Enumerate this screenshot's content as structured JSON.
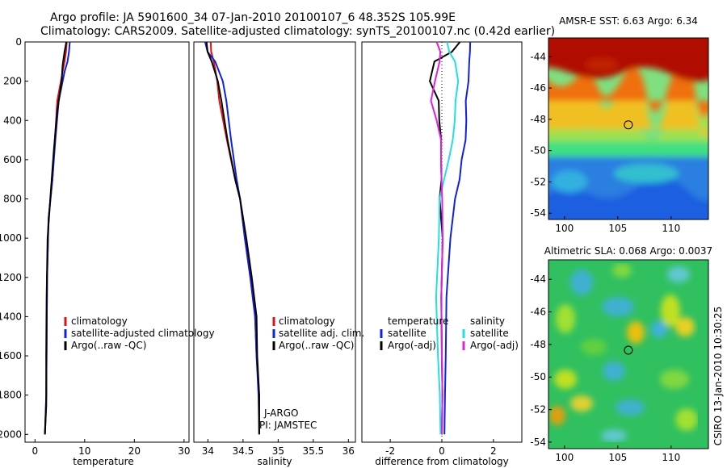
{
  "header": {
    "line1": "Argo profile: JA 5901600_34 07-Jan-2010 20100107_6 48.352S 105.99E",
    "line2": "Climatology: CARS2009. Satellite-adjusted climatology: synTS_20100107.nc (0.42d earlier)"
  },
  "side_label": "CSIRO 13-Jan-2010 10:30:25",
  "colors": {
    "climatology": "#e01010",
    "satellite": "#1020e0",
    "argo": "#000000",
    "salinity_satellite": "#20e0e0",
    "salinity_argo": "#e020e0"
  },
  "chart_data": [
    {
      "type": "line",
      "id": "temperature",
      "xlabel": "temperature",
      "ylabel": "",
      "xlim": [
        -2,
        31
      ],
      "ylim": [
        2040,
        0
      ],
      "y_reversed": true,
      "xticks": [
        0,
        10,
        20,
        30
      ],
      "yticks": [
        0,
        200,
        400,
        600,
        800,
        1000,
        1200,
        1400,
        1600,
        1800,
        2000
      ],
      "legend": {
        "placement": "lower-center",
        "entries": [
          {
            "label": "climatology",
            "color": "#e01010"
          },
          {
            "label": "satellite-adjusted climatology",
            "color": "#1020e0"
          },
          {
            "label": "Argo(..raw -QC)",
            "color": "#000000"
          }
        ]
      },
      "series": [
        {
          "name": "climatology",
          "color": "#e01010",
          "x": [
            6.4,
            6.3,
            5.9,
            5.4,
            4.6,
            4.0,
            3.4,
            2.9,
            2.5,
            2.3,
            2.1,
            2.0
          ],
          "y": [
            0,
            50,
            100,
            150,
            300,
            500,
            700,
            900,
            1200,
            1500,
            1800,
            2000
          ]
        },
        {
          "name": "satellite-adjusted climatology",
          "color": "#1020e0",
          "x": [
            7.0,
            6.9,
            6.5,
            5.8,
            4.9,
            4.1,
            3.4,
            2.9,
            2.5,
            2.3,
            2.1,
            2.0
          ],
          "y": [
            0,
            50,
            100,
            150,
            300,
            500,
            700,
            900,
            1200,
            1500,
            1800,
            2000
          ]
        },
        {
          "name": "Argo(..raw -QC)",
          "color": "#000000",
          "x": [
            6.3,
            6.0,
            5.5,
            5.2,
            4.6,
            3.8,
            3.1,
            2.7,
            2.4,
            2.2,
            2.1,
            2.0
          ],
          "y": [
            0,
            50,
            120,
            200,
            350,
            550,
            750,
            1000,
            1300,
            1600,
            1850,
            2000
          ]
        }
      ]
    },
    {
      "type": "line",
      "id": "salinity",
      "xlabel": "salinity",
      "ylabel": "",
      "xlim": [
        33.8,
        36.1
      ],
      "ylim": [
        2040,
        0
      ],
      "y_reversed": true,
      "xticks": [
        34,
        34.5,
        35,
        35.5,
        36
      ],
      "legend": {
        "placement": "lower-center",
        "entries": [
          {
            "label": "climatology",
            "color": "#e01010"
          },
          {
            "label": "satellite adj. clim.",
            "color": "#1020e0"
          },
          {
            "label": "Argo(..raw -QC)",
            "color": "#000000"
          }
        ]
      },
      "annotation": [
        "J-ARGO",
        "PI: JAMSTEC"
      ],
      "series": [
        {
          "name": "climatology",
          "color": "#e01010",
          "x": [
            34.04,
            34.05,
            34.08,
            34.12,
            34.17,
            34.27,
            34.38,
            34.47,
            34.53,
            34.6,
            34.66,
            34.7,
            34.73,
            34.73
          ],
          "y": [
            0,
            50,
            100,
            200,
            300,
            500,
            700,
            800,
            1000,
            1200,
            1400,
            1600,
            1800,
            2000
          ]
        },
        {
          "name": "satellite adj. clim.",
          "color": "#1020e0",
          "x": [
            33.96,
            34.0,
            34.1,
            34.2,
            34.27,
            34.33,
            34.4,
            34.47,
            34.53,
            34.6,
            34.66,
            34.7,
            34.72,
            34.73
          ],
          "y": [
            0,
            50,
            100,
            200,
            300,
            500,
            700,
            800,
            1000,
            1200,
            1400,
            1600,
            1800,
            2000
          ]
        },
        {
          "name": "Argo(..raw -QC)",
          "color": "#000000",
          "x": [
            33.98,
            34.0,
            34.05,
            34.13,
            34.2,
            34.28,
            34.38,
            34.47,
            34.55,
            34.62,
            34.68,
            34.71,
            34.73,
            34.73
          ],
          "y": [
            0,
            50,
            100,
            200,
            300,
            500,
            700,
            800,
            1000,
            1200,
            1400,
            1600,
            1800,
            2000
          ]
        }
      ]
    },
    {
      "type": "line",
      "id": "difference",
      "xlabel": "difference from climatology",
      "ylabel": "",
      "xlim": [
        -3.1,
        3.1
      ],
      "ylim": [
        2040,
        0
      ],
      "y_reversed": true,
      "xticks": [
        -2,
        0,
        2
      ],
      "legend": {
        "placement": "lower-center",
        "columns": [
          {
            "heading": "temperature",
            "entries": [
              {
                "label": "satellite",
                "color": "#1020e0"
              },
              {
                "label": "Argo(-adj)",
                "color": "#000000"
              }
            ]
          },
          {
            "heading": "salinity",
            "entries": [
              {
                "label": "satellite",
                "color": "#20e0e0"
              },
              {
                "label": "Argo(-adj)",
                "color": "#e020e0"
              }
            ]
          }
        ]
      },
      "series": [
        {
          "name": "temperature satellite",
          "color": "#1020e0",
          "x": [
            1.1,
            1.1,
            1.05,
            1.0,
            0.95,
            0.95,
            0.9,
            0.8,
            0.7,
            0.5,
            0.3,
            0.2,
            0.15,
            0.1,
            0.1
          ],
          "y": [
            0,
            50,
            100,
            200,
            300,
            400,
            500,
            600,
            700,
            800,
            1000,
            1300,
            1600,
            1800,
            2000
          ]
        },
        {
          "name": "temperature Argo(-adj)",
          "color": "#000000",
          "x": [
            0.7,
            0.4,
            -0.3,
            -0.5,
            -0.1,
            -0.1,
            -0.05,
            0.0,
            0.0,
            -0.1,
            0.0,
            0.0,
            0.0,
            0.0,
            0.0
          ],
          "y": [
            0,
            50,
            100,
            200,
            300,
            400,
            500,
            600,
            700,
            800,
            1000,
            1300,
            1600,
            1800,
            2000
          ]
        },
        {
          "name": "salinity satellite",
          "color": "#20e0e0",
          "x": [
            0.2,
            0.3,
            0.5,
            0.6,
            0.55,
            0.5,
            0.4,
            0.3,
            0.1,
            -0.1,
            -0.15,
            -0.2,
            -0.15,
            -0.1,
            -0.05
          ],
          "y": [
            0,
            50,
            100,
            200,
            300,
            400,
            500,
            600,
            700,
            800,
            1000,
            1300,
            1600,
            1800,
            2000
          ]
        },
        {
          "name": "salinity Argo(-adj)",
          "color": "#e020e0",
          "x": [
            -0.2,
            -0.05,
            -0.1,
            -0.3,
            -0.4,
            -0.2,
            -0.05,
            0.0,
            0.0,
            0.0,
            0.0,
            0.0,
            0.0,
            0.0,
            0.0
          ],
          "y": [
            0,
            50,
            100,
            200,
            300,
            400,
            500,
            600,
            700,
            800,
            1000,
            1300,
            1600,
            1800,
            2000
          ]
        }
      ]
    },
    {
      "type": "heatmap",
      "id": "sst-map",
      "title": "AMSR-E SST: 6.63 Argo: 6.34",
      "xlim": [
        98.5,
        113.5
      ],
      "ylim": [
        -54.4,
        -42.8
      ],
      "xticks": [
        100,
        105,
        110
      ],
      "yticks": [
        -44,
        -46,
        -48,
        -50,
        -52,
        -54
      ],
      "marker": {
        "lon": 105.99,
        "lat": -48.352
      }
    },
    {
      "type": "heatmap",
      "id": "sla-map",
      "title": "Altimetric SLA: 0.068 Argo: 0.0037",
      "xlim": [
        98.5,
        113.5
      ],
      "ylim": [
        -54.4,
        -42.8
      ],
      "xticks": [
        100,
        105,
        110
      ],
      "yticks": [
        -44,
        -46,
        -48,
        -50,
        -52,
        -54
      ],
      "marker": {
        "lon": 105.99,
        "lat": -48.352
      }
    }
  ]
}
